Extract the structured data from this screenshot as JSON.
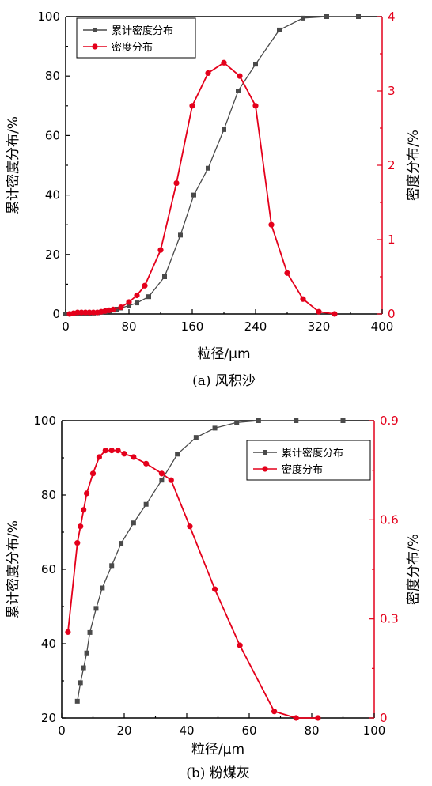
{
  "chart_data": [
    {
      "type": "line",
      "caption": "(a) 风积沙",
      "xlabel": "粒径/μm",
      "ylabel_left": "累计密度分布/%",
      "ylabel_right": "密度分布/%",
      "xlim": [
        0,
        400
      ],
      "ylim_left": [
        0,
        100
      ],
      "ylim_right": [
        0,
        4
      ],
      "xticks": [
        "0",
        "80",
        "160",
        "240",
        "320",
        "400"
      ],
      "yticks_left": [
        "0",
        "20",
        "40",
        "60",
        "80",
        "100"
      ],
      "yticks_right": [
        "0",
        "1",
        "2",
        "3",
        "4"
      ],
      "legend_position": "top-left",
      "series": [
        {
          "name": "累计密度分布",
          "axis": "left",
          "color": "#4a4a4a",
          "marker": "square",
          "x": [
            0,
            10,
            15,
            20,
            25,
            30,
            35,
            40,
            45,
            50,
            55,
            60,
            65,
            70,
            80,
            90,
            105,
            125,
            145,
            162,
            180,
            200,
            218,
            240,
            270,
            300,
            330,
            370
          ],
          "y": [
            0,
            0,
            0,
            0.1,
            0.1,
            0.2,
            0.3,
            0.4,
            0.6,
            0.8,
            1.0,
            1.3,
            1.6,
            2.0,
            2.8,
            3.7,
            5.8,
            12.5,
            26.5,
            40,
            49,
            62,
            75,
            84,
            95.5,
            99.5,
            100,
            100
          ]
        },
        {
          "name": "密度分布",
          "axis": "right",
          "color": "#e4001b",
          "marker": "circle",
          "x": [
            5,
            10,
            15,
            20,
            25,
            30,
            35,
            40,
            45,
            50,
            55,
            60,
            70,
            80,
            90,
            100,
            120,
            140,
            160,
            180,
            200,
            220,
            240,
            260,
            280,
            300,
            320,
            340
          ],
          "y": [
            0,
            0.01,
            0.02,
            0.02,
            0.02,
            0.02,
            0.02,
            0.02,
            0.03,
            0.04,
            0.05,
            0.06,
            0.09,
            0.16,
            0.25,
            0.38,
            0.86,
            1.76,
            2.8,
            3.24,
            3.38,
            3.2,
            2.8,
            1.2,
            0.55,
            0.2,
            0.03,
            0
          ]
        }
      ]
    },
    {
      "type": "line",
      "caption": "(b) 粉煤灰",
      "xlabel": "粒径/μm",
      "ylabel_left": "累计密度分布/%",
      "ylabel_right": "密度分布/%",
      "xlim": [
        0,
        100
      ],
      "ylim_left": [
        20,
        100
      ],
      "ylim_right": [
        0,
        0.9
      ],
      "xticks": [
        "0",
        "20",
        "40",
        "60",
        "80",
        "100"
      ],
      "yticks_left": [
        "20",
        "40",
        "60",
        "80",
        "100"
      ],
      "yticks_right": [
        "0",
        "0.3",
        "0.6",
        "0.9"
      ],
      "legend_position": "top-right",
      "series": [
        {
          "name": "累计密度分布",
          "axis": "left",
          "color": "#4a4a4a",
          "marker": "square",
          "x": [
            5,
            6,
            7,
            8,
            9,
            11,
            13,
            16,
            19,
            23,
            27,
            32,
            37,
            43,
            49,
            56,
            63,
            75,
            90
          ],
          "y": [
            24.5,
            29.5,
            33.5,
            37.5,
            43,
            49.5,
            55,
            61,
            67,
            72.5,
            77.5,
            84,
            91,
            95.5,
            98,
            99.5,
            100,
            100,
            100
          ]
        },
        {
          "name": "密度分布",
          "axis": "right",
          "color": "#e4001b",
          "marker": "circle",
          "x": [
            2,
            5,
            6,
            7,
            8,
            10,
            12,
            14,
            16,
            18,
            20,
            23,
            27,
            32,
            35,
            41,
            49,
            57,
            68,
            75,
            82
          ],
          "y": [
            0.26,
            0.53,
            0.58,
            0.63,
            0.68,
            0.74,
            0.79,
            0.81,
            0.81,
            0.81,
            0.8,
            0.79,
            0.77,
            0.74,
            0.72,
            0.58,
            0.39,
            0.22,
            0.02,
            0,
            0
          ]
        }
      ]
    }
  ]
}
